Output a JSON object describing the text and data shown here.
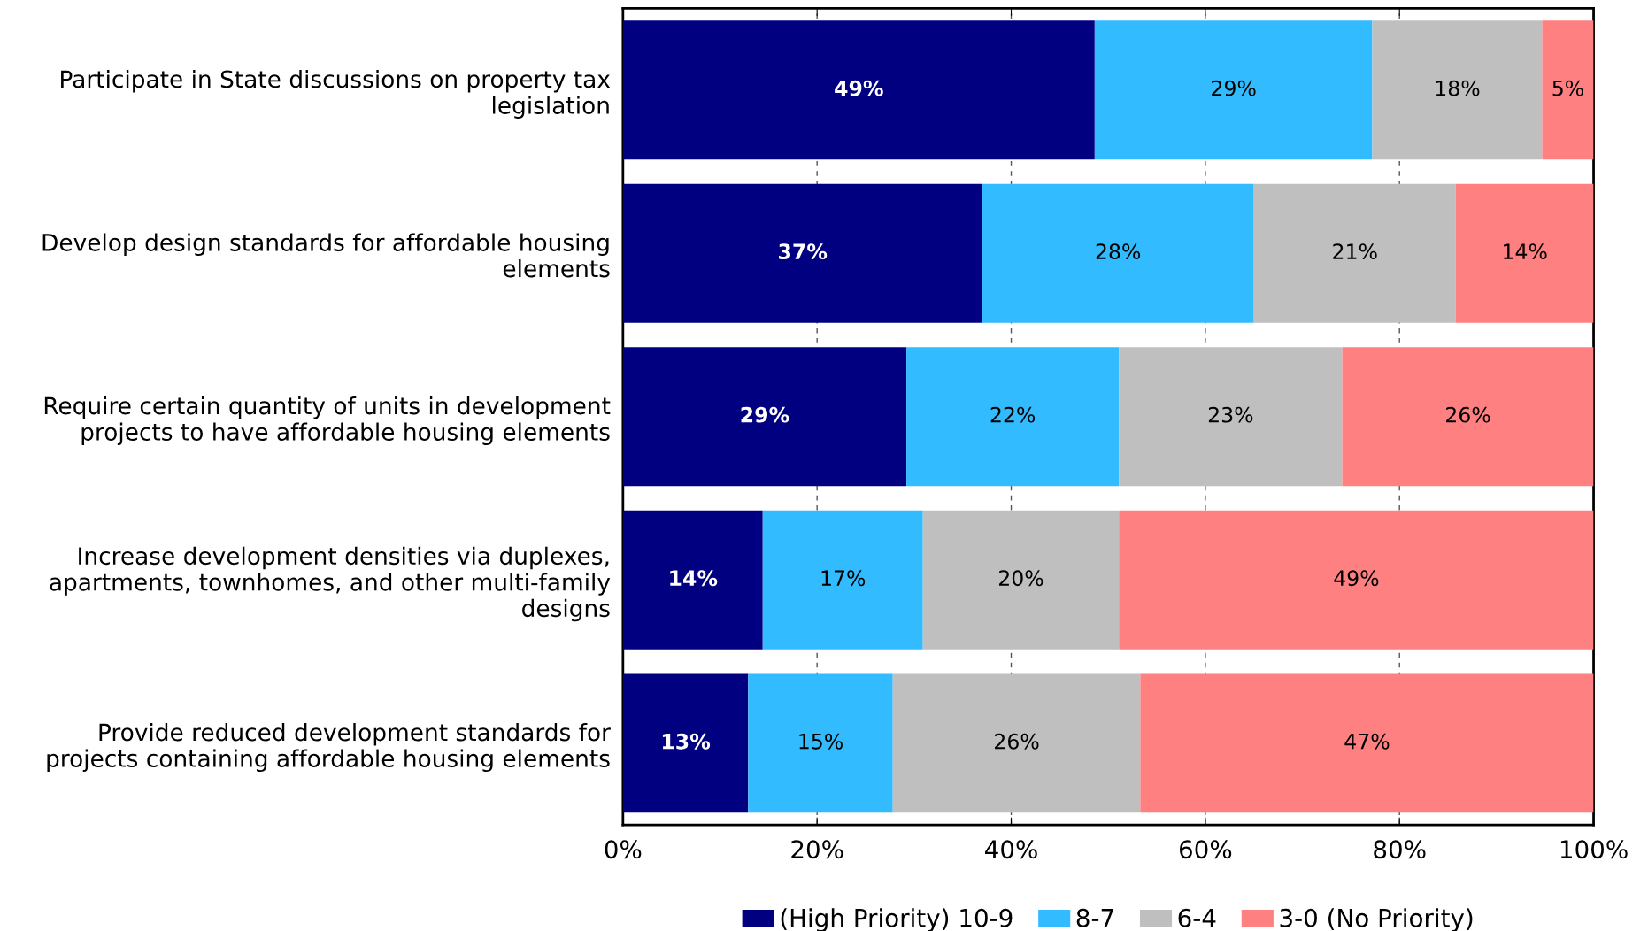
{
  "chart_data": {
    "type": "bar",
    "orientation": "horizontal",
    "stacked": true,
    "categories": [
      "Participate in State discussions on property tax legislation",
      "Develop design standards for affordable housing elements",
      "Require certain quantity of units in development projects to have affordable housing elements",
      "Increase development densities via duplexes, apartments, townhomes, and other multi-family designs",
      "Provide reduced development standards for projects containing affordable housing elements"
    ],
    "series": [
      {
        "name": "(High Priority) 10-9",
        "color": "#000080",
        "values": [
          48.6,
          37.0,
          29.2,
          14.4,
          12.9
        ],
        "value_labels": [
          "49%",
          "37%",
          "29%",
          "14%",
          "13%"
        ]
      },
      {
        "name": "8-7",
        "color": "#33bbff",
        "values": [
          28.6,
          28.0,
          21.9,
          16.5,
          14.9
        ],
        "value_labels": [
          "29%",
          "28%",
          "22%",
          "17%",
          "15%"
        ]
      },
      {
        "name": "6-4",
        "color": "#bfbfbf",
        "values": [
          17.5,
          20.8,
          23.0,
          20.2,
          25.5
        ],
        "value_labels": [
          "18%",
          "21%",
          "23%",
          "20%",
          "26%"
        ]
      },
      {
        "name": "3-0 (No Priority)",
        "color": "#ff8080",
        "values": [
          5.3,
          14.2,
          25.9,
          48.9,
          46.7
        ],
        "value_labels": [
          "5%",
          "14%",
          "26%",
          "49%",
          "47%"
        ]
      }
    ],
    "xlim": [
      0,
      100
    ],
    "xticks": [
      {
        "value": 0,
        "label": "0%"
      },
      {
        "value": 20,
        "label": "20%"
      },
      {
        "value": 40,
        "label": "40%"
      },
      {
        "value": 60,
        "label": "60%"
      },
      {
        "value": 80,
        "label": "80%"
      },
      {
        "value": 100,
        "label": "100%"
      }
    ],
    "grid": "x",
    "legend": "bottom"
  }
}
